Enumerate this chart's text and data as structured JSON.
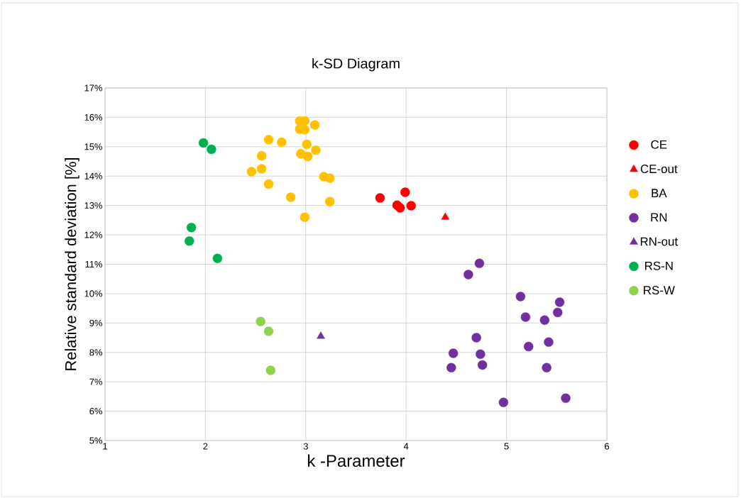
{
  "chart_data": {
    "type": "scatter",
    "title": "k-SD Diagram",
    "xlabel": "k -Parameter",
    "ylabel": "Relative standard deviation  [%]",
    "xlim": [
      1,
      6
    ],
    "xticks": [
      1,
      2,
      3,
      4,
      5,
      6
    ],
    "ylim": [
      5,
      17
    ],
    "yticks": [
      {
        "value": 5,
        "label": "5%"
      },
      {
        "value": 6,
        "label": "6%"
      },
      {
        "value": 7,
        "label": "7%"
      },
      {
        "value": 8,
        "label": "8%"
      },
      {
        "value": 9,
        "label": "9%"
      },
      {
        "value": 10,
        "label": "10%"
      },
      {
        "value": 11,
        "label": "11%"
      },
      {
        "value": 12,
        "label": "12%"
      },
      {
        "value": 13,
        "label": "13%"
      },
      {
        "value": 14,
        "label": "14%"
      },
      {
        "value": 15,
        "label": "15%"
      },
      {
        "value": 16,
        "label": "16%"
      },
      {
        "value": 17,
        "label": "17%"
      }
    ],
    "grid": true,
    "legend": "right",
    "series": [
      {
        "name": "CE",
        "color": "#ff0000",
        "marker": "circle",
        "x": [
          3.74,
          3.99,
          3.91,
          3.94,
          4.05
        ],
        "values": [
          13.26,
          13.45,
          13.01,
          12.92,
          12.99
        ]
      },
      {
        "name": "CE-out",
        "color": "#ff0000",
        "marker": "triangle",
        "x": [
          4.39
        ],
        "values": [
          12.6
        ]
      },
      {
        "name": "BA",
        "color": "#ffc000",
        "marker": "circle",
        "x": [
          2.94,
          2.99,
          3.09,
          2.94,
          2.99,
          2.63,
          2.76,
          3.01,
          3.1,
          2.95,
          3.02,
          2.56,
          2.56,
          2.46,
          3.18,
          3.24,
          2.63,
          2.85,
          3.24,
          2.99
        ],
        "values": [
          15.88,
          15.88,
          15.74,
          15.6,
          15.58,
          15.24,
          15.15,
          15.08,
          14.88,
          14.76,
          14.67,
          14.69,
          14.25,
          14.15,
          13.98,
          13.93,
          13.73,
          13.28,
          13.13,
          12.6
        ]
      },
      {
        "name": "RN",
        "color": "#7030a0",
        "marker": "circle",
        "x": [
          4.73,
          4.62,
          5.14,
          5.53,
          5.51,
          5.19,
          5.38,
          4.7,
          5.22,
          5.42,
          4.47,
          4.74,
          4.45,
          4.76,
          5.4,
          4.97,
          5.59
        ],
        "values": [
          11.03,
          10.65,
          9.9,
          9.71,
          9.36,
          9.2,
          9.1,
          8.5,
          8.2,
          8.35,
          7.97,
          7.94,
          7.48,
          7.57,
          7.48,
          6.3,
          6.44
        ]
      },
      {
        "name": "RN-out",
        "color": "#7030a0",
        "marker": "triangle",
        "x": [
          3.15
        ],
        "values": [
          8.55
        ]
      },
      {
        "name": "RS-N",
        "color": "#00b050",
        "marker": "circle",
        "x": [
          1.98,
          2.06,
          1.86,
          1.84,
          2.12
        ],
        "values": [
          15.13,
          14.91,
          12.25,
          11.79,
          11.2
        ]
      },
      {
        "name": "RS-W",
        "color": "#92d050",
        "marker": "circle",
        "x": [
          2.55,
          2.63,
          2.65
        ],
        "values": [
          9.05,
          8.72,
          7.39
        ]
      }
    ]
  }
}
